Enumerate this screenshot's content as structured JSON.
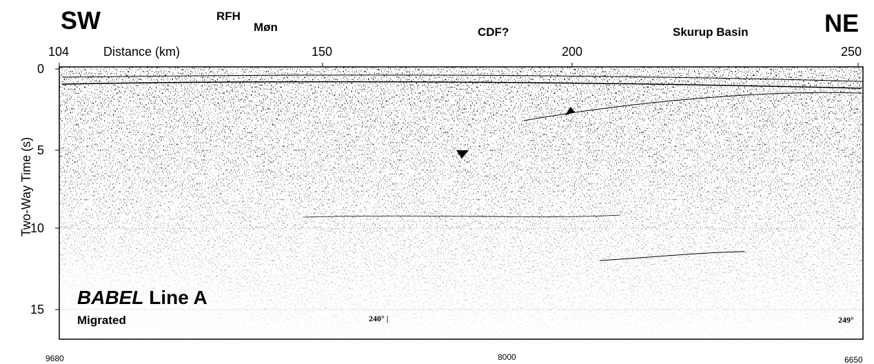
{
  "header": {
    "left": "SW",
    "right": "NE",
    "labels": [
      "RFH",
      "Møn",
      "CDF?",
      "Skurup Basin"
    ]
  },
  "top_axis": {
    "label": "Distance (km)",
    "ticks": [
      "104",
      "150",
      "200",
      "250"
    ]
  },
  "left_axis": {
    "label": "Two-Way Time (s)",
    "ticks": [
      "0",
      "5",
      "10",
      "15"
    ]
  },
  "bottom_axis": {
    "ticks": [
      "9680",
      "8000",
      "6650"
    ]
  },
  "panel": {
    "title_italic": "BABEL",
    "title_rest": "Line A",
    "subtitle": "Migrated",
    "annotations": [
      "240° |",
      "249°"
    ]
  }
}
